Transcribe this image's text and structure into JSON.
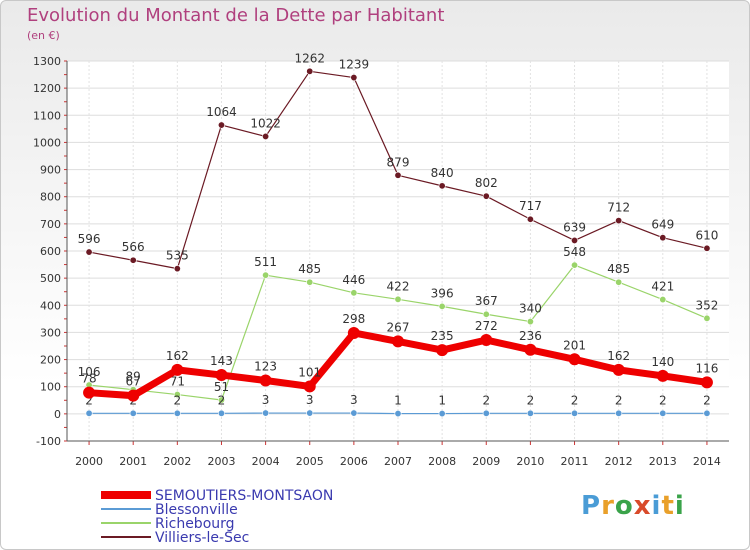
{
  "title": "Evolution du Montant de la Dette par Habitant",
  "unit": "(en €)",
  "logo": {
    "text": "Proxiti",
    "colors": [
      "#4a9cd6",
      "#e9a02a",
      "#3aa34a",
      "#d94a2a",
      "#4a9cd6",
      "#e9a02a",
      "#3aa34a"
    ]
  },
  "chart_data": {
    "type": "line",
    "x": [
      "2000",
      "2001",
      "2002",
      "2003",
      "2004",
      "2005",
      "2006",
      "2007",
      "2008",
      "2009",
      "2010",
      "2011",
      "2012",
      "2013",
      "2014"
    ],
    "ylim": [
      -100,
      1300
    ],
    "yticks": [
      -100,
      0,
      100,
      200,
      300,
      400,
      500,
      600,
      700,
      800,
      900,
      1000,
      1100,
      1200,
      1300
    ],
    "grid": true,
    "legend_position": "bottom-left",
    "series": [
      {
        "name": "Villiers-le-Sec",
        "color": "#6b1a24",
        "width": 1.2,
        "values": [
          596,
          566,
          535,
          1064,
          1022,
          1262,
          1239,
          879,
          840,
          802,
          717,
          639,
          712,
          649,
          610
        ]
      },
      {
        "name": "Richebourg",
        "color": "#9ad46a",
        "width": 1.2,
        "values": [
          106,
          89,
          71,
          51,
          511,
          485,
          446,
          422,
          396,
          367,
          340,
          548,
          485,
          421,
          352
        ]
      },
      {
        "name": "Blessonville",
        "color": "#5b9bd5",
        "width": 1.2,
        "values": [
          2,
          2,
          2,
          2,
          3,
          3,
          3,
          1,
          1,
          2,
          2,
          2,
          2,
          2,
          2
        ]
      },
      {
        "name": "SEMOUTIERS-MONTSAON",
        "color": "#ee0000",
        "width": 7,
        "values": [
          78,
          67,
          162,
          143,
          123,
          101,
          298,
          267,
          235,
          272,
          236,
          201,
          162,
          140,
          116
        ]
      }
    ]
  }
}
